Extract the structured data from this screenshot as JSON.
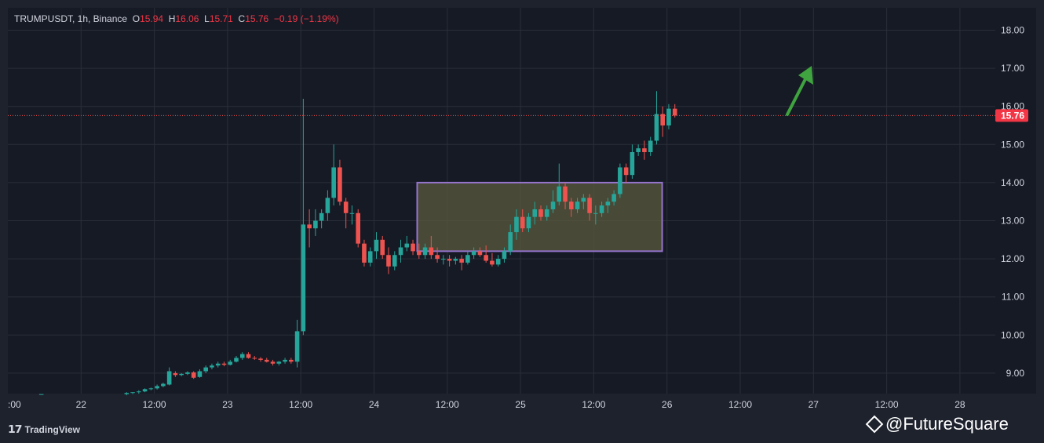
{
  "header": {
    "symbol": "TRUMPUSDT, 1h, Binance",
    "open_label": "O",
    "open_value": "15.94",
    "high_label": "H",
    "high_value": "16.06",
    "low_label": "L",
    "low_value": "15.71",
    "close_label": "C",
    "close_value": "15.76",
    "change": "−0.19 (−1.19%)"
  },
  "last_price_label": "15.76",
  "branding": {
    "tradingview": "TradingView",
    "watermark": "@FutureSquare"
  },
  "colors": {
    "up": "#26a69a",
    "down": "#ef5350",
    "background": "#161a25",
    "grid": "#2a2e39",
    "box_fill": "#5a5a3c",
    "box_border": "#9575cd",
    "arrow": "#3fa33f",
    "price_line": "#ef5350"
  },
  "chart_data": {
    "type": "candlestick",
    "y_ticks": [
      "18.00",
      "17.00",
      "16.00",
      "15.00",
      "14.00",
      "13.00",
      "12.00",
      "11.00",
      "10.00",
      "9.00"
    ],
    "x_ticks": [
      ":00",
      "22",
      "12:00",
      "23",
      "12:00",
      "24",
      "12:00",
      "25",
      "12:00",
      "26",
      "12:00",
      "27",
      "12:00",
      "28"
    ],
    "ylim": [
      8.4,
      18.6
    ],
    "last_price": 15.76,
    "range_box": {
      "x_start": 73,
      "x_end": 106,
      "y_low": 12.2,
      "y_high": 14.0
    },
    "arrow_target": {
      "x": 111.5,
      "y": 17.1
    },
    "candles": [
      [
        5.5,
        8.45,
        8.45,
        8.45,
        8.45
      ],
      [
        19.5,
        8.45,
        8.5,
        8.42,
        8.48
      ],
      [
        20.5,
        8.48,
        8.5,
        8.45,
        8.5
      ],
      [
        21.5,
        8.5,
        8.55,
        8.46,
        8.52
      ],
      [
        22.5,
        8.52,
        8.6,
        8.5,
        8.58
      ],
      [
        23.5,
        8.58,
        8.62,
        8.55,
        8.6
      ],
      [
        24.5,
        8.6,
        8.7,
        8.57,
        8.66
      ],
      [
        25.5,
        8.66,
        8.75,
        8.63,
        8.72
      ],
      [
        26.5,
        8.7,
        9.15,
        8.68,
        9.05
      ],
      [
        27.5,
        9.0,
        9.05,
        8.9,
        8.95
      ],
      [
        28.5,
        8.95,
        9.0,
        8.92,
        8.98
      ],
      [
        29.5,
        8.98,
        9.05,
        8.95,
        9.02
      ],
      [
        30.5,
        9.02,
        9.05,
        8.85,
        8.88
      ],
      [
        31.5,
        8.9,
        9.1,
        8.88,
        9.05
      ],
      [
        32.5,
        9.05,
        9.2,
        9.0,
        9.15
      ],
      [
        33.5,
        9.15,
        9.25,
        9.1,
        9.2
      ],
      [
        34.5,
        9.2,
        9.3,
        9.15,
        9.25
      ],
      [
        35.5,
        9.25,
        9.3,
        9.18,
        9.22
      ],
      [
        36.5,
        9.22,
        9.35,
        9.2,
        9.3
      ],
      [
        37.5,
        9.3,
        9.45,
        9.28,
        9.4
      ],
      [
        38.5,
        9.4,
        9.55,
        9.35,
        9.5
      ],
      [
        39.5,
        9.5,
        9.55,
        9.38,
        9.4
      ],
      [
        40.5,
        9.4,
        9.45,
        9.35,
        9.38
      ],
      [
        41.5,
        9.38,
        9.42,
        9.3,
        9.35
      ],
      [
        42.5,
        9.35,
        9.4,
        9.28,
        9.3
      ],
      [
        43.5,
        9.3,
        9.35,
        9.2,
        9.25
      ],
      [
        44.5,
        9.25,
        9.32,
        9.2,
        9.3
      ],
      [
        45.5,
        9.3,
        9.4,
        9.25,
        9.35
      ],
      [
        46.5,
        9.35,
        9.4,
        9.25,
        9.3
      ],
      [
        47.5,
        9.3,
        10.4,
        9.15,
        10.1
      ],
      [
        48.5,
        10.1,
        16.2,
        10.0,
        12.9
      ],
      [
        49.5,
        12.9,
        13.3,
        12.3,
        12.8
      ],
      [
        50.5,
        12.8,
        13.3,
        12.6,
        13.0
      ],
      [
        51.5,
        13.0,
        13.3,
        12.8,
        13.2
      ],
      [
        52.5,
        13.2,
        13.8,
        13.0,
        13.6
      ],
      [
        53.5,
        13.6,
        15.0,
        13.4,
        14.4
      ],
      [
        54.5,
        14.4,
        14.6,
        13.4,
        13.5
      ],
      [
        55.5,
        13.5,
        13.6,
        12.8,
        13.2
      ],
      [
        56.5,
        13.2,
        13.4,
        12.9,
        13.2
      ],
      [
        57.5,
        13.2,
        13.3,
        12.3,
        12.4
      ],
      [
        58.5,
        12.4,
        12.5,
        11.8,
        11.9
      ],
      [
        59.5,
        11.9,
        12.3,
        11.8,
        12.2
      ],
      [
        60.5,
        12.2,
        12.7,
        12.0,
        12.5
      ],
      [
        61.5,
        12.5,
        12.6,
        12.0,
        12.1
      ],
      [
        62.5,
        12.1,
        12.3,
        11.6,
        11.8
      ],
      [
        63.5,
        11.8,
        12.2,
        11.7,
        12.1
      ],
      [
        64.5,
        12.1,
        12.5,
        11.9,
        12.3
      ],
      [
        65.5,
        12.3,
        12.6,
        12.2,
        12.4
      ],
      [
        66.5,
        12.4,
        12.5,
        12.1,
        12.2
      ],
      [
        67.5,
        12.2,
        12.4,
        12.0,
        12.1
      ],
      [
        68.5,
        12.1,
        12.4,
        12.0,
        12.3
      ],
      [
        69.5,
        12.3,
        12.6,
        12.0,
        12.1
      ],
      [
        70.5,
        12.1,
        12.3,
        11.9,
        12.0
      ],
      [
        71.5,
        12.0,
        12.1,
        11.85,
        12.0
      ],
      [
        72.5,
        12.0,
        12.1,
        11.8,
        11.95
      ],
      [
        73.5,
        11.95,
        12.05,
        11.85,
        12.0
      ],
      [
        74.5,
        12.0,
        12.1,
        11.7,
        11.9
      ],
      [
        75.5,
        11.9,
        12.2,
        11.85,
        12.1
      ],
      [
        76.5,
        12.1,
        12.3,
        12.0,
        12.2
      ],
      [
        77.5,
        12.2,
        12.3,
        12.05,
        12.1
      ],
      [
        78.5,
        12.1,
        12.35,
        11.9,
        11.95
      ],
      [
        79.5,
        11.95,
        12.15,
        11.8,
        11.85
      ],
      [
        80.5,
        11.85,
        12.1,
        11.8,
        12.0
      ],
      [
        81.5,
        12.0,
        12.3,
        11.9,
        12.2
      ],
      [
        82.5,
        12.2,
        12.9,
        12.1,
        12.7
      ],
      [
        83.5,
        12.7,
        13.3,
        12.5,
        13.1
      ],
      [
        84.5,
        13.1,
        13.3,
        12.7,
        12.8
      ],
      [
        85.5,
        12.8,
        13.2,
        12.7,
        13.1
      ],
      [
        86.5,
        13.1,
        13.5,
        12.9,
        13.3
      ],
      [
        87.5,
        13.3,
        13.4,
        13.0,
        13.1
      ],
      [
        88.5,
        13.1,
        13.4,
        13.0,
        13.3
      ],
      [
        89.5,
        13.3,
        13.8,
        13.2,
        13.5
      ],
      [
        90.5,
        13.5,
        14.5,
        13.4,
        13.9
      ],
      [
        91.5,
        13.9,
        14.0,
        13.3,
        13.5
      ],
      [
        92.5,
        13.5,
        13.6,
        13.1,
        13.3
      ],
      [
        93.5,
        13.3,
        13.6,
        13.2,
        13.5
      ],
      [
        94.5,
        13.5,
        13.7,
        13.3,
        13.6
      ],
      [
        95.5,
        13.6,
        13.7,
        13.0,
        13.2
      ],
      [
        96.5,
        13.2,
        13.4,
        12.9,
        13.2
      ],
      [
        97.5,
        13.2,
        13.5,
        13.1,
        13.4
      ],
      [
        98.5,
        13.4,
        13.6,
        13.2,
        13.5
      ],
      [
        99.5,
        13.5,
        13.8,
        13.4,
        13.7
      ],
      [
        100.5,
        13.7,
        14.5,
        13.6,
        14.4
      ],
      [
        101.5,
        14.4,
        14.5,
        14.0,
        14.2
      ],
      [
        102.5,
        14.2,
        15.0,
        14.1,
        14.8
      ],
      [
        103.5,
        14.8,
        15.0,
        14.7,
        14.9
      ],
      [
        104.5,
        14.9,
        15.1,
        14.6,
        14.8
      ],
      [
        105.5,
        14.8,
        15.2,
        14.7,
        15.1
      ],
      [
        106.5,
        15.1,
        16.4,
        15.0,
        15.8
      ],
      [
        107.5,
        15.8,
        16.0,
        15.2,
        15.5
      ],
      [
        108.5,
        15.5,
        16.06,
        15.4,
        15.94
      ],
      [
        109.5,
        15.94,
        16.06,
        15.71,
        15.76
      ]
    ]
  }
}
